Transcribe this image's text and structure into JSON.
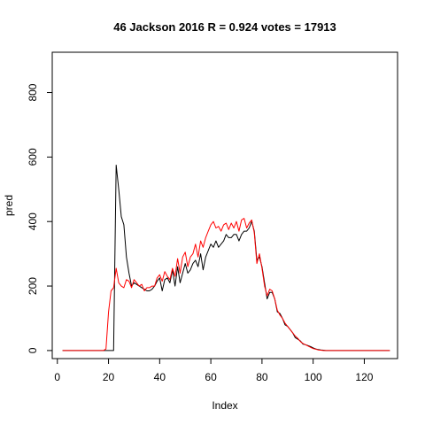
{
  "chart_data": {
    "type": "line",
    "title": "46 Jackson 2016 R = 0.924 votes = 17913",
    "xlabel": "Index",
    "ylabel": "pred",
    "xlim": [
      -2,
      133
    ],
    "ylim": [
      -25,
      925
    ],
    "x_ticks": [
      0,
      20,
      40,
      60,
      80,
      100,
      120
    ],
    "y_ticks": [
      0,
      200,
      400,
      600,
      800
    ],
    "grid": false,
    "legend": "none",
    "x_start": 2,
    "series": [
      {
        "color": "#000000",
        "values": [
          0,
          0,
          0,
          0,
          0,
          0,
          0,
          0,
          0,
          0,
          0,
          0,
          0,
          0,
          0,
          0,
          0,
          0,
          0,
          0,
          0,
          575,
          500,
          415,
          390,
          290,
          240,
          200,
          210,
          205,
          200,
          195,
          190,
          185,
          185,
          190,
          200,
          215,
          225,
          185,
          220,
          225,
          210,
          250,
          200,
          260,
          210,
          240,
          270,
          240,
          250,
          270,
          280,
          260,
          300,
          250,
          290,
          310,
          330,
          320,
          340,
          320,
          330,
          340,
          360,
          350,
          350,
          360,
          360,
          340,
          360,
          370,
          370,
          380,
          400,
          370,
          280,
          290,
          260,
          210,
          160,
          180,
          180,
          160,
          120,
          115,
          100,
          80,
          75,
          65,
          55,
          40,
          35,
          30,
          20,
          18,
          15,
          12,
          8,
          5,
          3,
          2,
          1,
          0,
          0,
          0,
          0,
          0,
          0,
          0,
          0,
          0,
          0,
          0,
          0,
          0,
          0,
          0,
          0,
          0,
          0,
          0,
          0,
          0,
          0,
          0,
          0,
          0,
          0
        ]
      },
      {
        "color": "#ff0000",
        "values": [
          0,
          0,
          0,
          0,
          0,
          0,
          0,
          0,
          0,
          0,
          0,
          0,
          0,
          0,
          0,
          0,
          0,
          5,
          120,
          185,
          195,
          255,
          210,
          200,
          195,
          220,
          215,
          195,
          220,
          210,
          200,
          205,
          185,
          195,
          195,
          200,
          200,
          225,
          235,
          215,
          245,
          230,
          220,
          255,
          230,
          285,
          240,
          290,
          305,
          260,
          290,
          300,
          330,
          290,
          340,
          320,
          350,
          370,
          390,
          400,
          380,
          385,
          370,
          390,
          395,
          375,
          395,
          380,
          400,
          370,
          405,
          410,
          380,
          395,
          405,
          365,
          270,
          300,
          255,
          200,
          170,
          190,
          185,
          160,
          125,
          110,
          100,
          85,
          75,
          65,
          55,
          45,
          38,
          28,
          22,
          18,
          14,
          10,
          6,
          4,
          2,
          1,
          0,
          0,
          0,
          0,
          0,
          0,
          0,
          0,
          0,
          0,
          0,
          0,
          0,
          0,
          0,
          0,
          0,
          0,
          0,
          0,
          0,
          0,
          0,
          0,
          0,
          0,
          0
        ]
      }
    ]
  }
}
